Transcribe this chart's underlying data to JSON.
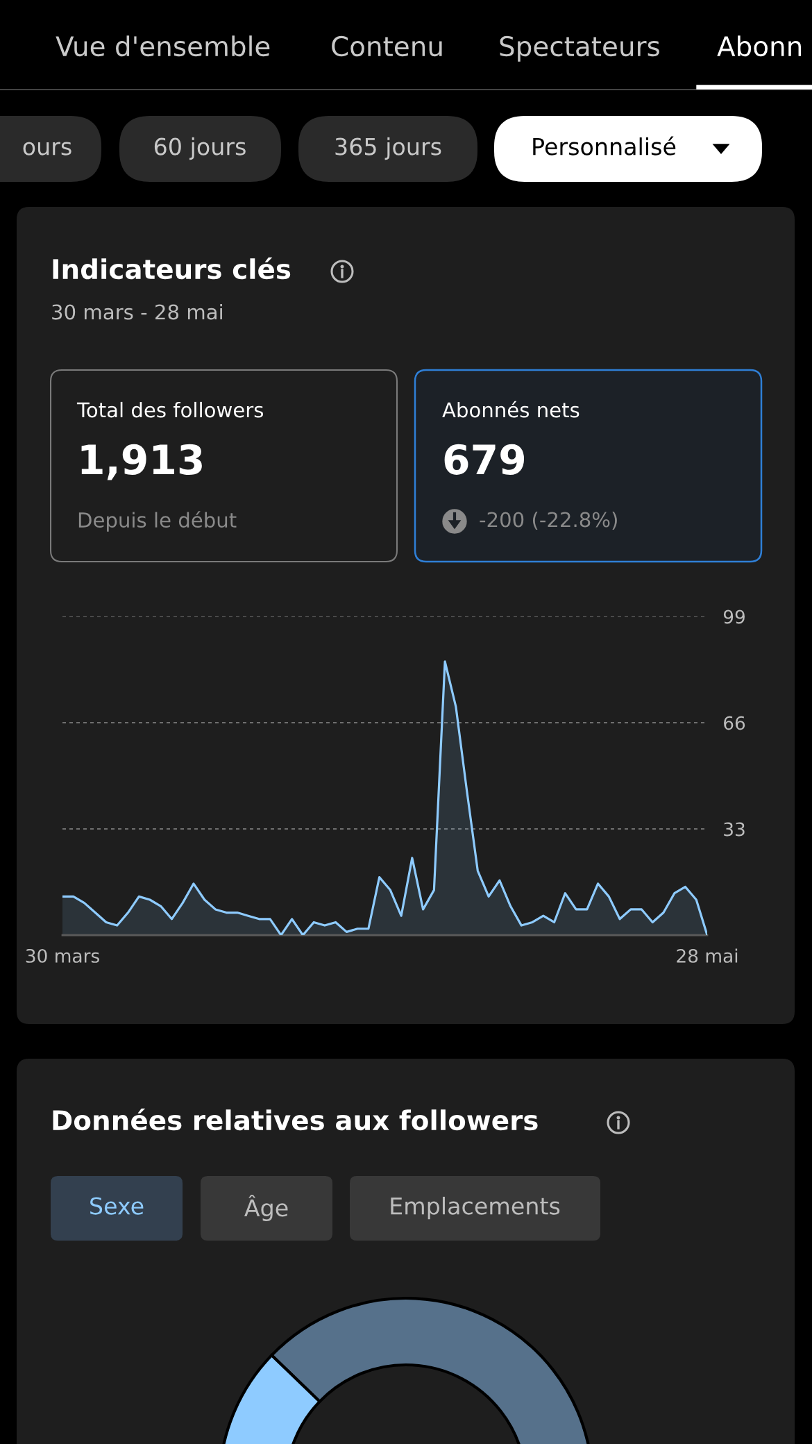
{
  "chart_data": [
    {
      "type": "other",
      "annotations": [
        "Vue d'ensemble",
        "Contenu",
        "Spectateurs",
        "Abonn",
        "ours",
        "60 jours",
        "365 jours",
        "Personnalisé"
      ]
    },
    {
      "type": "other",
      "title": "Indicateurs clés",
      "subtitle": "30 mars - 28 mai",
      "annotations": [
        "Total des followers",
        "1,913",
        "Depuis le début",
        "Abonnés nets",
        "679",
        "-200 (-22.8%)"
      ]
    },
    {
      "type": "area",
      "color": "#8ecbff",
      "categories": [
        "30 mars",
        null,
        null,
        null,
        null,
        null,
        null,
        null,
        null,
        null,
        null,
        null,
        null,
        null,
        null,
        null,
        null,
        null,
        null,
        null,
        null,
        null,
        null,
        null,
        null,
        null,
        null,
        null,
        null,
        null,
        null,
        null,
        null,
        null,
        null,
        null,
        null,
        null,
        null,
        null,
        null,
        null,
        null,
        null,
        null,
        null,
        null,
        null,
        null,
        null,
        null,
        null,
        null,
        null,
        null,
        null,
        null,
        null,
        null,
        "28 mai"
      ],
      "values": [
        12,
        12,
        10,
        7,
        4,
        3,
        7,
        12,
        11,
        9,
        5,
        10,
        16,
        11,
        8,
        7,
        7,
        6,
        5,
        5,
        0,
        5,
        0,
        4,
        3,
        4,
        1,
        2,
        2,
        18,
        14,
        6,
        24,
        8,
        14,
        85,
        71,
        45,
        20,
        12,
        17,
        9,
        3,
        4,
        6,
        4,
        13,
        8,
        8,
        16,
        12,
        5,
        8,
        8,
        4,
        7,
        13,
        15,
        11,
        0
      ],
      "ylim": [
        0,
        99
      ],
      "yticks": [
        33,
        66,
        99
      ],
      "grid": "y"
    },
    {
      "type": "other",
      "title": "Données relatives aux followers",
      "annotations": [
        "Sexe",
        "Âge",
        "Emplacements"
      ]
    }
  ]
}
